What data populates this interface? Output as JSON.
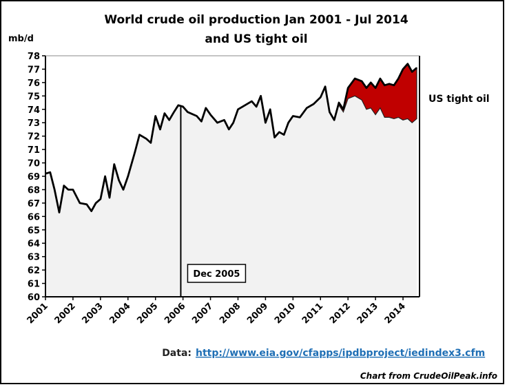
{
  "chart_data": {
    "type": "line",
    "title": [
      "World crude oil production Jan 2001 - Jul 2014",
      "and US tight oil"
    ],
    "y_label": "mb/d",
    "x": [
      2001,
      2001.17,
      2001.33,
      2001.5,
      2001.67,
      2001.83,
      2002,
      2002.25,
      2002.5,
      2002.67,
      2002.83,
      2003,
      2003.17,
      2003.33,
      2003.5,
      2003.67,
      2003.83,
      2004,
      2004.25,
      2004.42,
      2004.67,
      2004.83,
      2005,
      2005.17,
      2005.33,
      2005.5,
      2005.67,
      2005.83,
      2006,
      2006.17,
      2006.5,
      2006.67,
      2006.83,
      2007,
      2007.25,
      2007.5,
      2007.67,
      2007.83,
      2008,
      2008.25,
      2008.5,
      2008.67,
      2008.83,
      2009,
      2009.17,
      2009.33,
      2009.5,
      2009.67,
      2009.83,
      2010,
      2010.25,
      2010.5,
      2010.75,
      2011,
      2011.17,
      2011.33,
      2011.5,
      2011.67,
      2011.83,
      2012,
      2012.25,
      2012.5,
      2012.67,
      2012.83,
      2013,
      2013.17,
      2013.33,
      2013.5,
      2013.67,
      2013.83,
      2014,
      2014.17,
      2014.33,
      2014.5
    ],
    "series": [
      {
        "color": "#000000",
        "values": [
          69.2,
          69.3,
          68.0,
          66.3,
          68.3,
          68.0,
          68.0,
          67.0,
          66.9,
          66.4,
          67.0,
          67.3,
          69.0,
          67.4,
          69.9,
          68.7,
          68.0,
          69.0,
          70.8,
          72.1,
          71.8,
          71.5,
          73.5,
          72.5,
          73.7,
          73.2,
          73.8,
          74.3,
          74.2,
          73.8,
          73.5,
          73.1,
          74.1,
          73.6,
          73.0,
          73.2,
          72.5,
          73.0,
          74.0,
          74.3,
          74.6,
          74.2,
          75.0,
          73.0,
          74.0,
          71.9,
          72.3,
          72.1,
          73.0,
          73.5,
          73.4,
          74.1,
          74.4,
          74.9,
          75.7,
          73.8,
          73.2,
          74.5,
          74.0,
          75.6,
          76.3,
          76.1,
          75.6,
          76.0,
          75.6,
          76.3,
          75.8,
          75.9,
          75.8,
          76.3,
          77.0,
          77.4,
          76.8,
          77.1
        ]
      },
      {
        "name": "US tight oil",
        "color": "#c00000",
        "values": [
          null,
          null,
          null,
          null,
          null,
          null,
          null,
          null,
          null,
          null,
          null,
          null,
          null,
          null,
          null,
          null,
          null,
          null,
          null,
          null,
          null,
          null,
          null,
          null,
          null,
          null,
          null,
          null,
          null,
          null,
          null,
          null,
          null,
          null,
          null,
          null,
          null,
          null,
          null,
          null,
          null,
          null,
          null,
          null,
          null,
          null,
          null,
          null,
          null,
          null,
          null,
          null,
          null,
          null,
          null,
          null,
          null,
          0.2,
          0.2,
          0.8,
          1.3,
          1.4,
          1.6,
          1.9,
          2.0,
          2.2,
          2.4,
          2.5,
          2.5,
          2.9,
          3.8,
          4.1,
          3.8,
          3.8
        ]
      }
    ],
    "area_color": "#f2f2f2",
    "xlim": [
      2001,
      2014.6
    ],
    "xticks": [
      2001,
      2002,
      2003,
      2004,
      2005,
      2006,
      2007,
      2008,
      2009,
      2010,
      2011,
      2012,
      2013,
      2014
    ],
    "ylim": [
      60,
      78
    ],
    "yticks": [
      60,
      61,
      62,
      63,
      64,
      65,
      66,
      67,
      68,
      69,
      70,
      71,
      72,
      73,
      74,
      75,
      76,
      77,
      78
    ],
    "annotations": [
      {
        "x": 2005.92,
        "text": "Dec 2005"
      }
    ],
    "source": {
      "prefix": "Data:",
      "url": "http://www.eia.gov/cfapps/ipdbproject/iedindex3.cfm"
    },
    "credit": "Chart from CrudeOilPeak.info"
  }
}
